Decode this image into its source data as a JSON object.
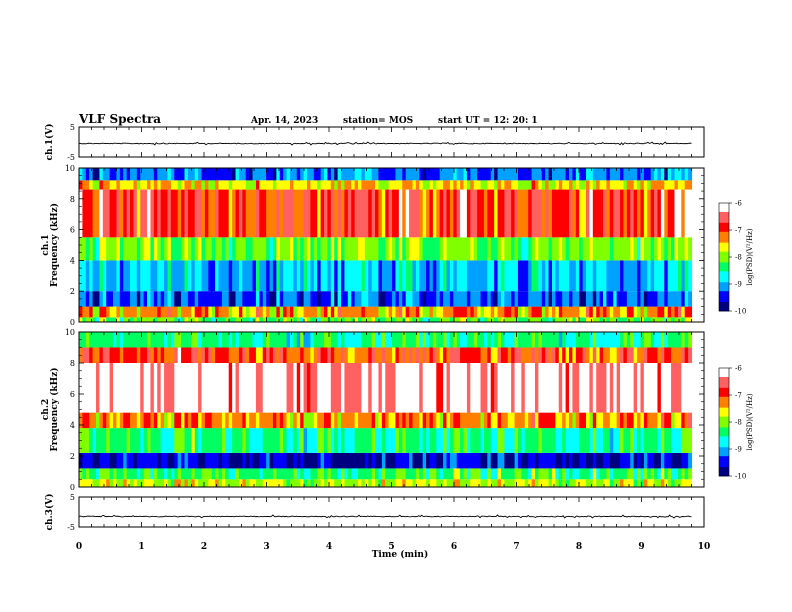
{
  "header": {
    "title": "VLF Spectra",
    "date": "Apr. 14, 2023",
    "station": "station= MOS",
    "start_ut": "start  UT =    12: 20: 1"
  },
  "chart_data": [
    {
      "type": "line",
      "panel": "waveform-ch1",
      "ylabel": "ch.1(V)",
      "ylim": [
        -5,
        5
      ],
      "yticks": [
        "5",
        "-5"
      ],
      "xlim": [
        0,
        10
      ],
      "baseline": -0.5
    },
    {
      "type": "heatmap",
      "panel": "spectrogram-ch1",
      "ylabel": "ch.1\nFrequency (kHz)",
      "ylim": [
        0,
        10
      ],
      "yticks": [
        "0",
        "2",
        "4",
        "6",
        "8",
        "10"
      ],
      "xlim": [
        0,
        10
      ],
      "x_data_end": 9.8,
      "colorbar": {
        "label": "log(PSD)(V²/Hz)",
        "range": [
          -10,
          -6
        ],
        "ticks": [
          "-6",
          "-7",
          "-8",
          "-9",
          "-10"
        ],
        "colors": [
          "#000080",
          "#0000ff",
          "#00a0ff",
          "#00ffff",
          "#00ff60",
          "#80ff00",
          "#ffff00",
          "#ff8000",
          "#ff0000",
          "#ff6060",
          "#ffffff"
        ]
      },
      "bands": [
        {
          "f": [
            0.0,
            0.3
          ],
          "level": -8.2
        },
        {
          "f": [
            0.3,
            1.0
          ],
          "level": -7.4
        },
        {
          "f": [
            1.0,
            2.0
          ],
          "level": -9.3
        },
        {
          "f": [
            2.0,
            4.0
          ],
          "level": -9.0
        },
        {
          "f": [
            4.0,
            5.5
          ],
          "level": -8.1
        },
        {
          "f": [
            5.5,
            8.6
          ],
          "level": -6.9
        },
        {
          "f": [
            8.6,
            9.2
          ],
          "level": -7.6
        },
        {
          "f": [
            9.2,
            10.0
          ],
          "level": -9.2
        }
      ]
    },
    {
      "type": "heatmap",
      "panel": "spectrogram-ch2",
      "ylabel": "ch.2\nFrequency (kHz)",
      "ylim": [
        0,
        10
      ],
      "yticks": [
        "0",
        "2",
        "4",
        "6",
        "8",
        "10"
      ],
      "xlim": [
        0,
        10
      ],
      "x_data_end": 9.8,
      "colorbar": {
        "label": "log(PSD)(V²/Hz)",
        "range": [
          -10,
          -6
        ],
        "ticks": [
          "-6",
          "-7",
          "-8",
          "-9",
          "-10"
        ],
        "colors": [
          "#000080",
          "#0000ff",
          "#00a0ff",
          "#00ffff",
          "#00ff60",
          "#80ff00",
          "#ffff00",
          "#ff8000",
          "#ff0000",
          "#ff6060",
          "#ffffff"
        ]
      },
      "bands": [
        {
          "f": [
            0.0,
            0.5
          ],
          "level": -7.8
        },
        {
          "f": [
            0.5,
            1.2
          ],
          "level": -8.3
        },
        {
          "f": [
            1.2,
            2.2
          ],
          "level": -9.6
        },
        {
          "f": [
            2.2,
            3.8
          ],
          "level": -8.4
        },
        {
          "f": [
            3.8,
            4.8
          ],
          "level": -7.3
        },
        {
          "f": [
            4.8,
            8.0
          ],
          "level": -6.2
        },
        {
          "f": [
            8.0,
            9.0
          ],
          "level": -7.0
        },
        {
          "f": [
            9.0,
            10.0
          ],
          "level": -8.4
        }
      ]
    },
    {
      "type": "line",
      "panel": "waveform-ch3",
      "ylabel": "ch.3(V)",
      "ylim": [
        -5,
        5
      ],
      "yticks": [
        "5",
        "-5"
      ],
      "xlim": [
        0,
        10
      ],
      "baseline": -1.5
    }
  ],
  "x_axis": {
    "label": "Time (min)",
    "ticks": [
      "0",
      "1",
      "2",
      "3",
      "4",
      "5",
      "6",
      "7",
      "8",
      "9",
      "10"
    ]
  },
  "colors": {
    "axis": "#000000",
    "trace": "#000000"
  }
}
